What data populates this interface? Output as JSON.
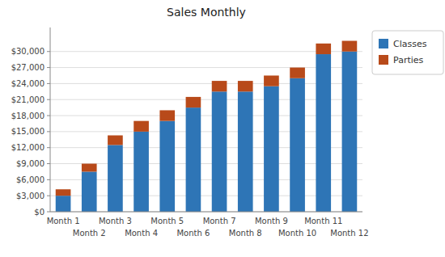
{
  "chart_data": {
    "type": "bar",
    "title": "Sales Monthly",
    "categories": [
      "Month 1",
      "Month 2",
      "Month 3",
      "Month 4",
      "Month 5",
      "Month 6",
      "Month 7",
      "Month 8",
      "Month 9",
      "Month 10",
      "Month 11",
      "Month 12"
    ],
    "series": [
      {
        "name": "Classes",
        "color": "#2E75B6",
        "values": [
          3000,
          7500,
          12500,
          15000,
          17000,
          19500,
          22500,
          22500,
          23500,
          25000,
          29500,
          30000
        ]
      },
      {
        "name": "Parties",
        "color": "#B84A1A",
        "values": [
          1200,
          1500,
          1800,
          2000,
          2000,
          2000,
          2000,
          2000,
          2000,
          2000,
          2000,
          2000
        ]
      }
    ],
    "stacked": true,
    "ylim": [
      0,
      34500
    ],
    "yticks": [
      {
        "value": 0,
        "label": "$0"
      },
      {
        "value": 3000,
        "label": "$3,000"
      },
      {
        "value": 6000,
        "label": "$6,000"
      },
      {
        "value": 9000,
        "label": "$9,000"
      },
      {
        "value": 12000,
        "label": "$12,000"
      },
      {
        "value": 15000,
        "label": "$15,000"
      },
      {
        "value": 18000,
        "label": "$18,000"
      },
      {
        "value": 21000,
        "label": "$21,000"
      },
      {
        "value": 24000,
        "label": "$24,000"
      },
      {
        "value": 27000,
        "label": "$27,000"
      },
      {
        "value": 30000,
        "label": "$30,000"
      }
    ],
    "grid": true,
    "legend": "upper right"
  }
}
